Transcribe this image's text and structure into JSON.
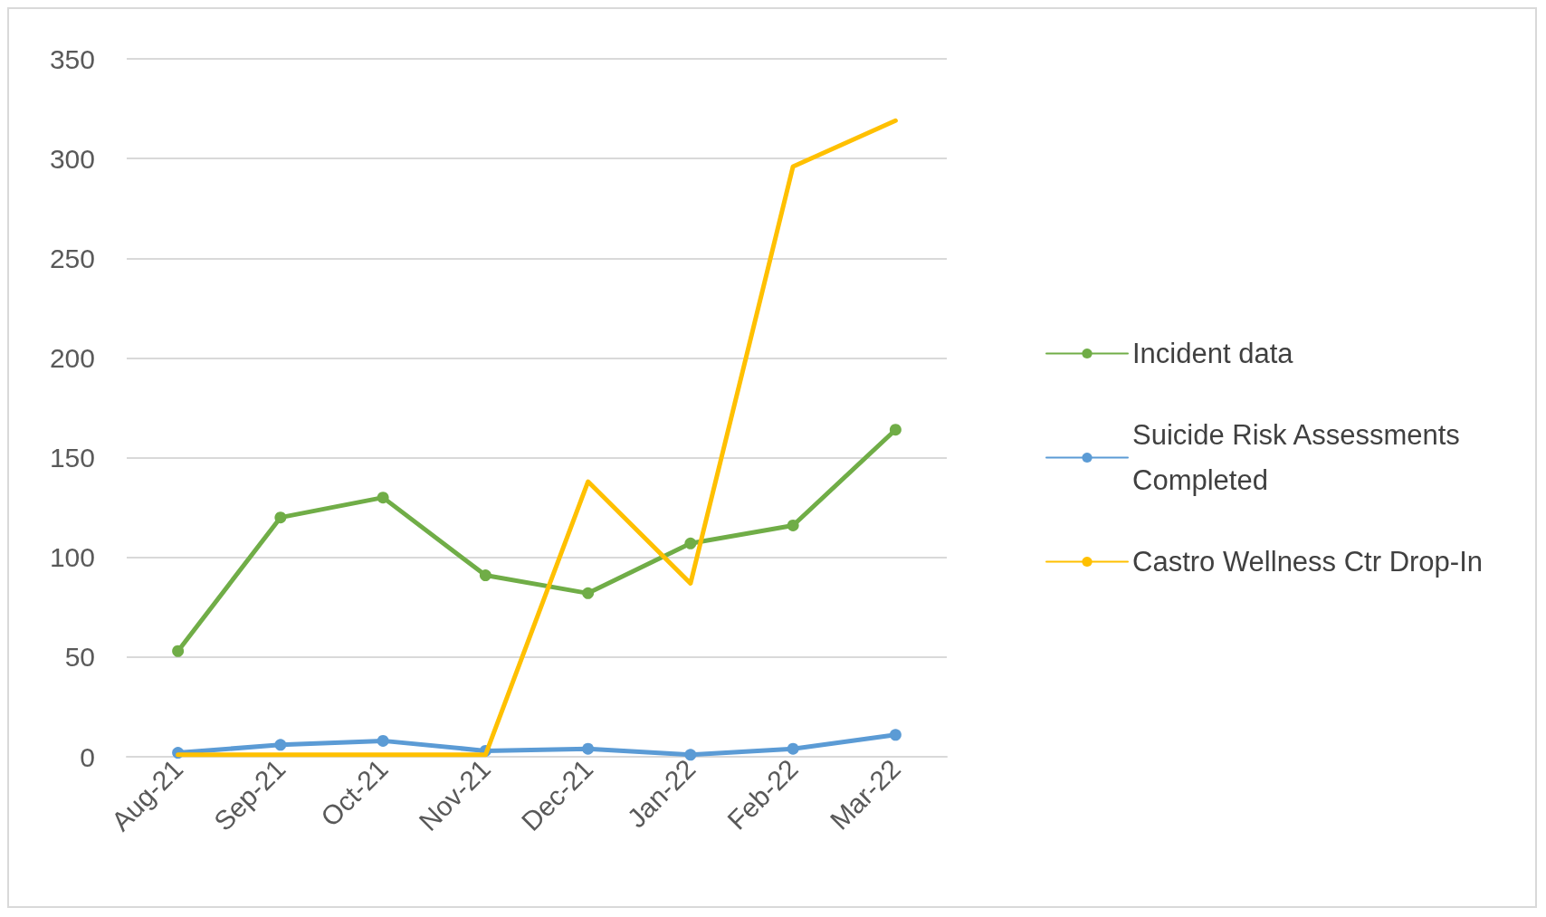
{
  "chart_data": {
    "type": "line",
    "categories": [
      "Aug-21",
      "Sep-21",
      "Oct-21",
      "Nov-21",
      "Dec-21",
      "Jan-22",
      "Feb-22",
      "Mar-22"
    ],
    "series": [
      {
        "name": "Incident data",
        "color": "#70ad47",
        "marker": "circle",
        "values": [
          53,
          120,
          130,
          91,
          82,
          107,
          116,
          164
        ]
      },
      {
        "name": "Suicide Risk Assessments Completed",
        "color": "#5b9bd5",
        "marker": "circle",
        "values": [
          2,
          6,
          8,
          3,
          4,
          1,
          4,
          11
        ]
      },
      {
        "name": "Castro Wellness Ctr Drop-In",
        "color": "#ffc000",
        "marker": "none",
        "values": [
          1,
          1,
          1,
          1,
          138,
          87,
          296,
          319
        ]
      }
    ],
    "ylim": [
      0,
      350
    ],
    "yticks": [
      0,
      50,
      100,
      150,
      200,
      250,
      300,
      350
    ],
    "grid": "y",
    "legend": "right"
  }
}
